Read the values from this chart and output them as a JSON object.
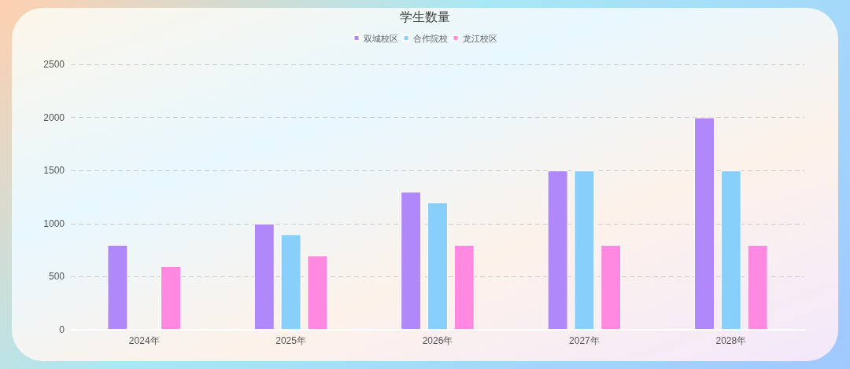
{
  "chart_data": {
    "type": "bar",
    "title": "学生数量",
    "categories": [
      "2024年",
      "2025年",
      "2026年",
      "2027年",
      "2028年"
    ],
    "series": [
      {
        "name": "双城校区",
        "color": "#b088f9",
        "values": [
          800,
          1000,
          1300,
          1500,
          2000
        ]
      },
      {
        "name": "合作院校",
        "color": "#88d0fb",
        "values": [
          null,
          900,
          1200,
          1500,
          1500
        ]
      },
      {
        "name": "龙江校区",
        "color": "#ff88e0",
        "values": [
          600,
          700,
          800,
          800,
          800
        ]
      }
    ],
    "ylim": [
      0,
      2500
    ],
    "yticks": [
      0,
      500,
      1000,
      1500,
      2000,
      2500
    ],
    "grid": "y",
    "legend": "top"
  }
}
